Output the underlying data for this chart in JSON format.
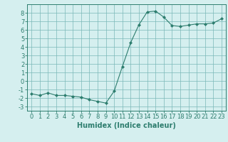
{
  "x": [
    0,
    1,
    2,
    3,
    4,
    5,
    6,
    7,
    8,
    9,
    10,
    11,
    12,
    13,
    14,
    15,
    16,
    17,
    18,
    19,
    20,
    21,
    22,
    23
  ],
  "y": [
    -1.5,
    -1.7,
    -1.4,
    -1.7,
    -1.7,
    -1.8,
    -1.9,
    -2.2,
    -2.4,
    -2.6,
    -1.2,
    1.7,
    4.5,
    6.6,
    8.1,
    8.2,
    7.5,
    6.5,
    6.4,
    6.55,
    6.7,
    6.7,
    6.8,
    7.3
  ],
  "line_color": "#2d7d6e",
  "marker": "D",
  "marker_size": 2,
  "bg_color": "#d5efef",
  "grid_color": "#7ab8b8",
  "xlabel": "Humidex (Indice chaleur)",
  "xlabel_fontsize": 7,
  "tick_fontsize": 6,
  "xlim": [
    -0.5,
    23.5
  ],
  "ylim": [
    -3.5,
    9.0
  ],
  "yticks": [
    -3,
    -2,
    -1,
    0,
    1,
    2,
    3,
    4,
    5,
    6,
    7,
    8
  ],
  "xticks": [
    0,
    1,
    2,
    3,
    4,
    5,
    6,
    7,
    8,
    9,
    10,
    11,
    12,
    13,
    14,
    15,
    16,
    17,
    18,
    19,
    20,
    21,
    22,
    23
  ]
}
